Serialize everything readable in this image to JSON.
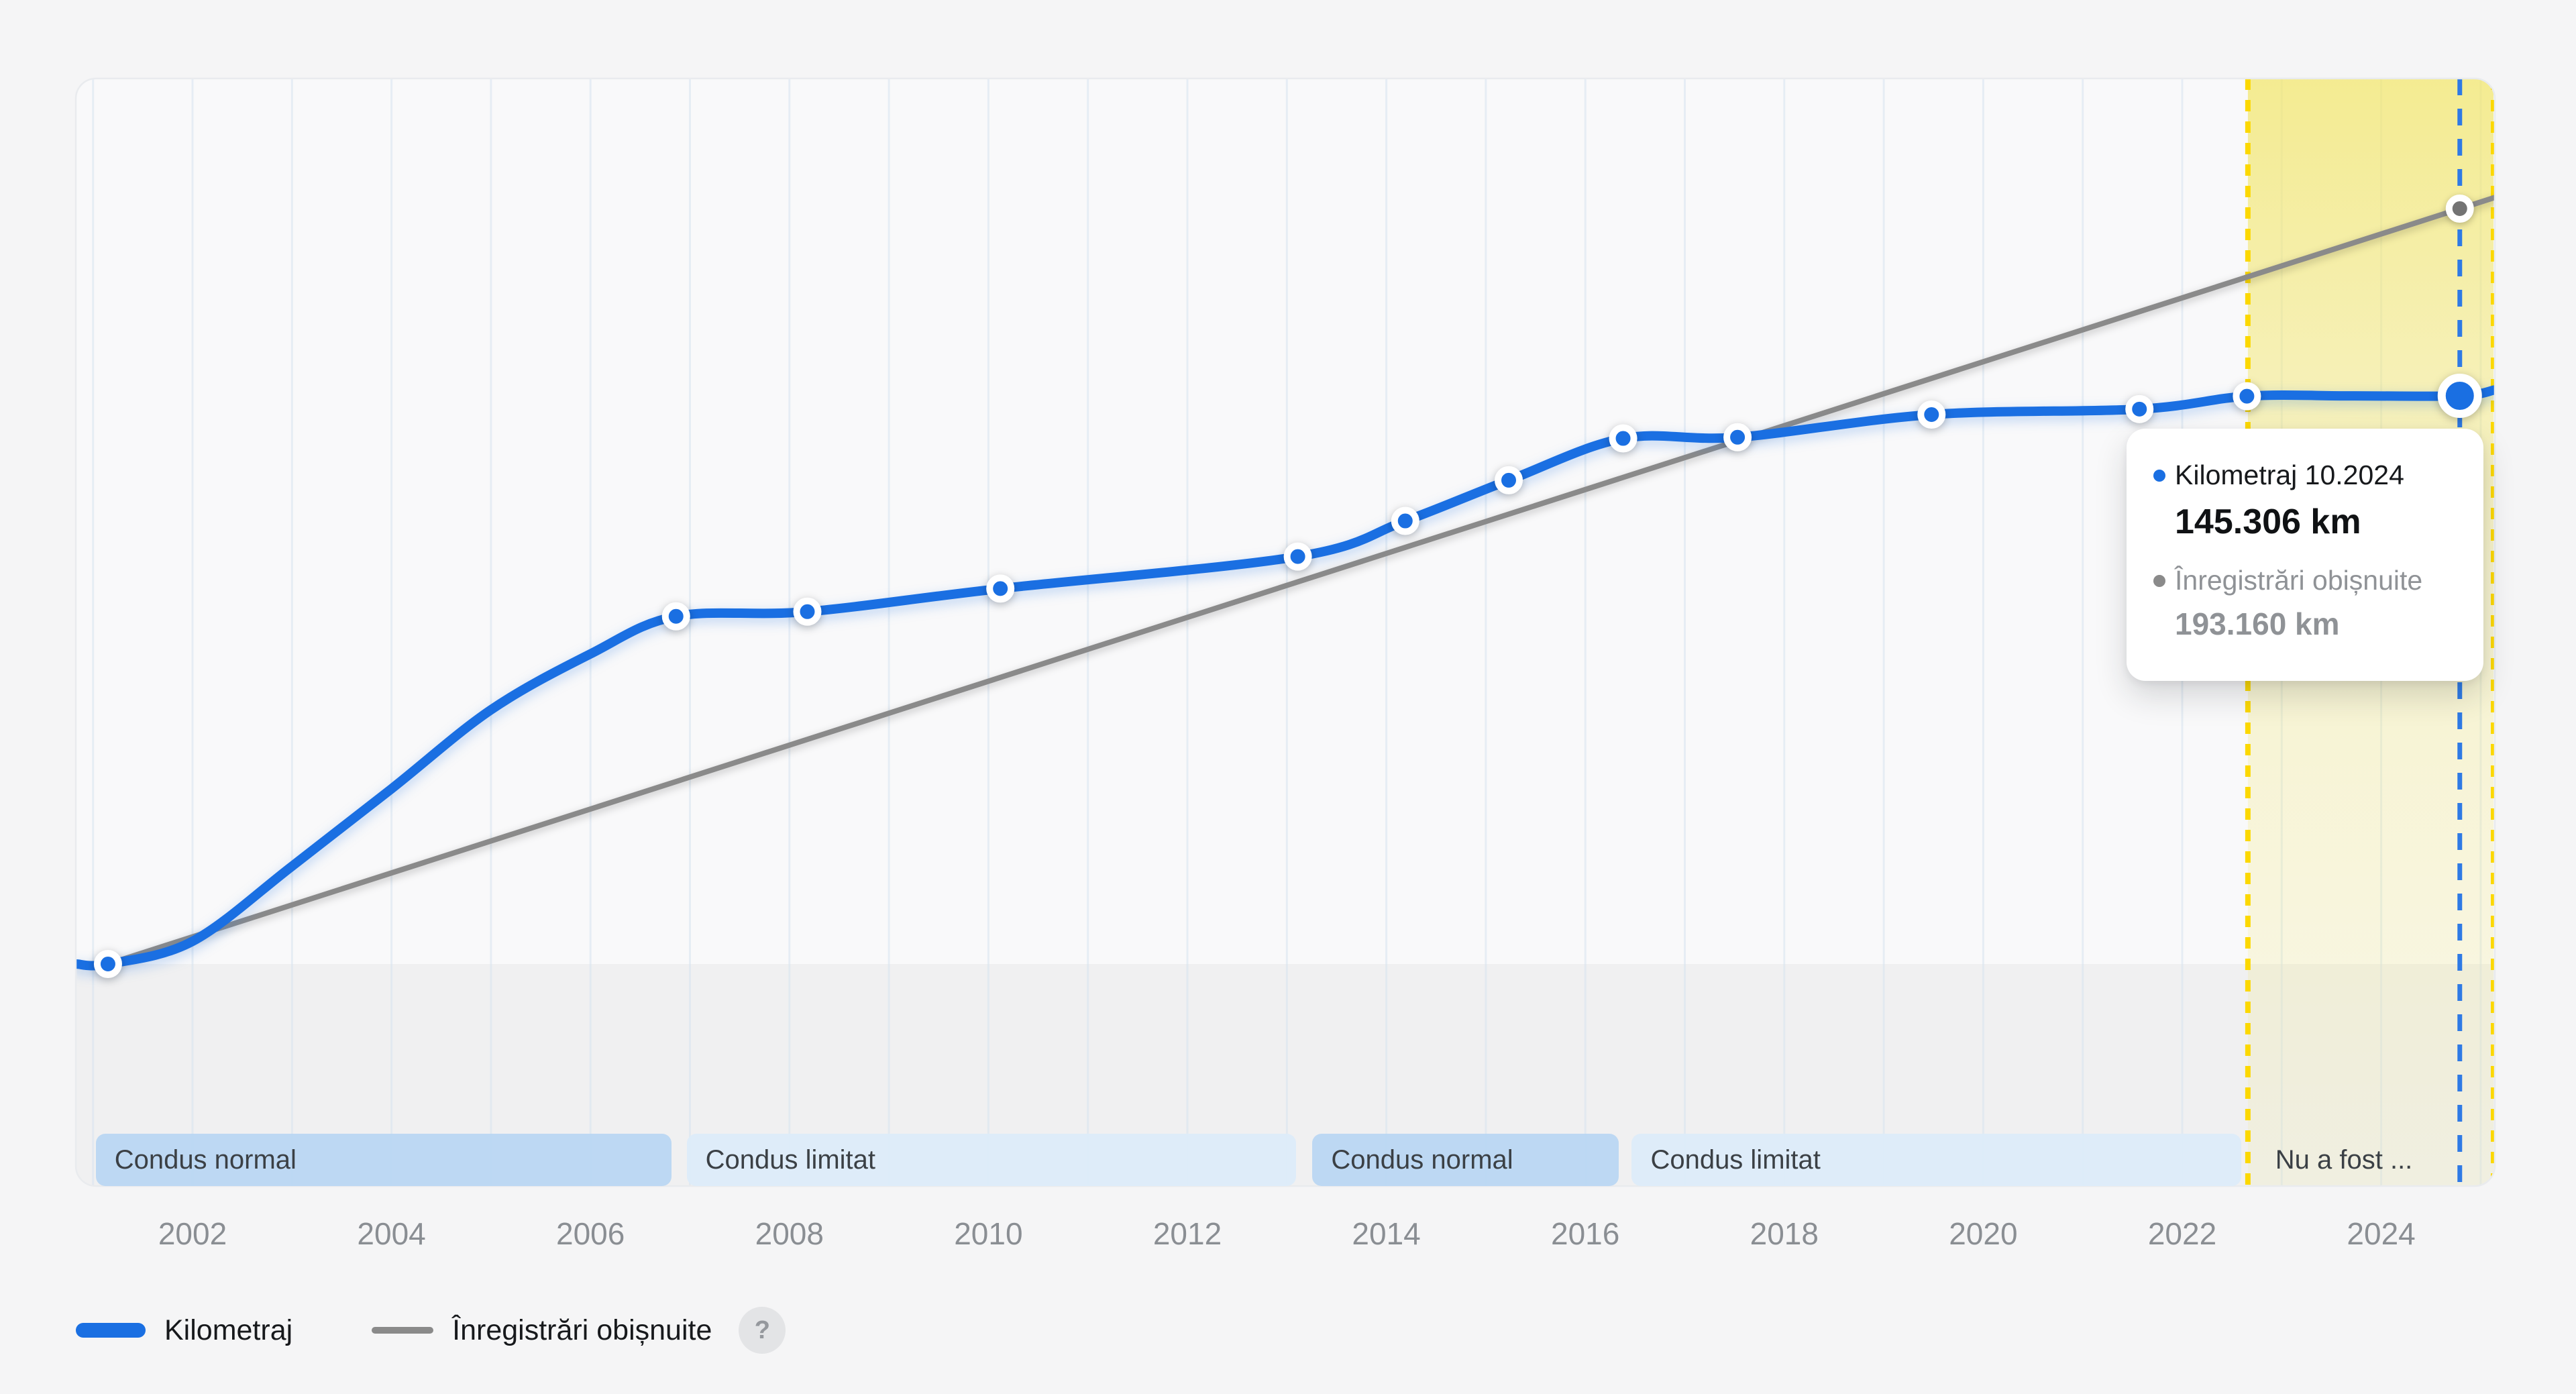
{
  "page": {
    "background": "#f5f5f6"
  },
  "chart_data": {
    "type": "line",
    "title": "",
    "xlabel": "",
    "ylabel": "",
    "x_axis": {
      "tick_labels": [
        "2002",
        "2004",
        "2006",
        "2008",
        "2010",
        "2012",
        "2014",
        "2016",
        "2018",
        "2020",
        "2022",
        "2024"
      ],
      "tick_years": [
        2002,
        2004,
        2006,
        2008,
        2010,
        2012,
        2014,
        2016,
        2018,
        2020,
        2022,
        2024
      ],
      "gridline_years_step": 1,
      "range_years": [
        2000.83,
        2025.14
      ]
    },
    "y_axis": {
      "unit": "km",
      "range_km": [
        0,
        210000
      ],
      "gridlines": false
    },
    "series": [
      {
        "name": "Kilometraj",
        "color": "#1a6fe2",
        "points": [
          {
            "year": 2001.15,
            "km": 0
          },
          {
            "year": 2006.86,
            "km": 88900
          },
          {
            "year": 2008.18,
            "km": 90100
          },
          {
            "year": 2010.12,
            "km": 96000
          },
          {
            "year": 2013.11,
            "km": 104200
          },
          {
            "year": 2014.19,
            "km": 113300
          },
          {
            "year": 2015.23,
            "km": 123700
          },
          {
            "year": 2016.38,
            "km": 134400
          },
          {
            "year": 2017.53,
            "km": 134700
          },
          {
            "year": 2019.48,
            "km": 140500
          },
          {
            "year": 2021.57,
            "km": 141900
          },
          {
            "year": 2022.65,
            "km": 145200
          },
          {
            "year": 2024.79,
            "km": 145306
          }
        ],
        "interpolated_shape_points": [
          [
            2000.83,
            0
          ],
          [
            2002,
            5800
          ],
          [
            2003,
            25000
          ],
          [
            2004,
            44800
          ],
          [
            2005,
            65000
          ],
          [
            2006,
            79300
          ],
          [
            2023.7,
            145280
          ],
          [
            2025.14,
            146800
          ]
        ]
      },
      {
        "name": "Înregistrări obișnuite",
        "color": "#8a8a8a",
        "points": [
          {
            "year": 2001.15,
            "km": 0
          },
          {
            "year": 2024.79,
            "km": 193160
          }
        ],
        "interpolated_shape_points": [
          [
            2025.14,
            196000
          ]
        ]
      }
    ],
    "active_point": {
      "series": "Kilometraj",
      "date_label": "10.2024",
      "year": 2024.79,
      "km": 145306
    },
    "highlight_region": {
      "start_year": 2022.66,
      "end_year": 2025.14,
      "color": "#f2e669",
      "edge_dash_color": "#fcd800"
    },
    "active_guide": {
      "year": 2024.79,
      "dash_color": "#2f7ae5"
    },
    "bands": [
      {
        "label": "Condus normal",
        "variant": "normal",
        "start_year": 2001.0,
        "end_year": 2006.84
      },
      {
        "label": "Condus limitat",
        "variant": "limited",
        "start_year": 2006.94,
        "end_year": 2013.12
      },
      {
        "label": "Condus normal",
        "variant": "normal",
        "start_year": 2013.23,
        "end_year": 2016.36
      },
      {
        "label": "Condus limitat",
        "variant": "limited",
        "start_year": 2016.44,
        "end_year": 2022.62
      },
      {
        "label": "Nu a fost ...",
        "variant": "none",
        "start_year": 2022.72,
        "end_year": 2025.1
      }
    ],
    "legend_position": "bottom-left",
    "grid": "vertical-only"
  },
  "tooltip": {
    "rows": [
      {
        "bullet_color": "#1a6fe2",
        "label": "Kilometraj 10.2024",
        "value": "145.306 km"
      },
      {
        "bullet_color": "#8a8a8a",
        "label": "Înregistrări obișnuite",
        "value": "193.160 km"
      }
    ]
  },
  "legend": {
    "items": [
      {
        "label": "Kilometraj",
        "swatch": "thick-blue-line"
      },
      {
        "label": "Înregistrări obișnuite",
        "swatch": "thin-gray-line"
      }
    ],
    "help_icon_glyph": "?"
  },
  "colors": {
    "plot_background": "#f9f9fa",
    "plot_border": "#e9ebee",
    "floor_fill": "#f0f0f1",
    "gridline": "#d8e4f0",
    "band_normal": "#b8d6f3",
    "band_limited": "#dcebfa",
    "band_text": "#3b4045",
    "tick_text": "#8a8e93",
    "mileage_line": "#1a6fe2",
    "usual_line": "#8a8a8a",
    "usual_marker": "#737373"
  }
}
